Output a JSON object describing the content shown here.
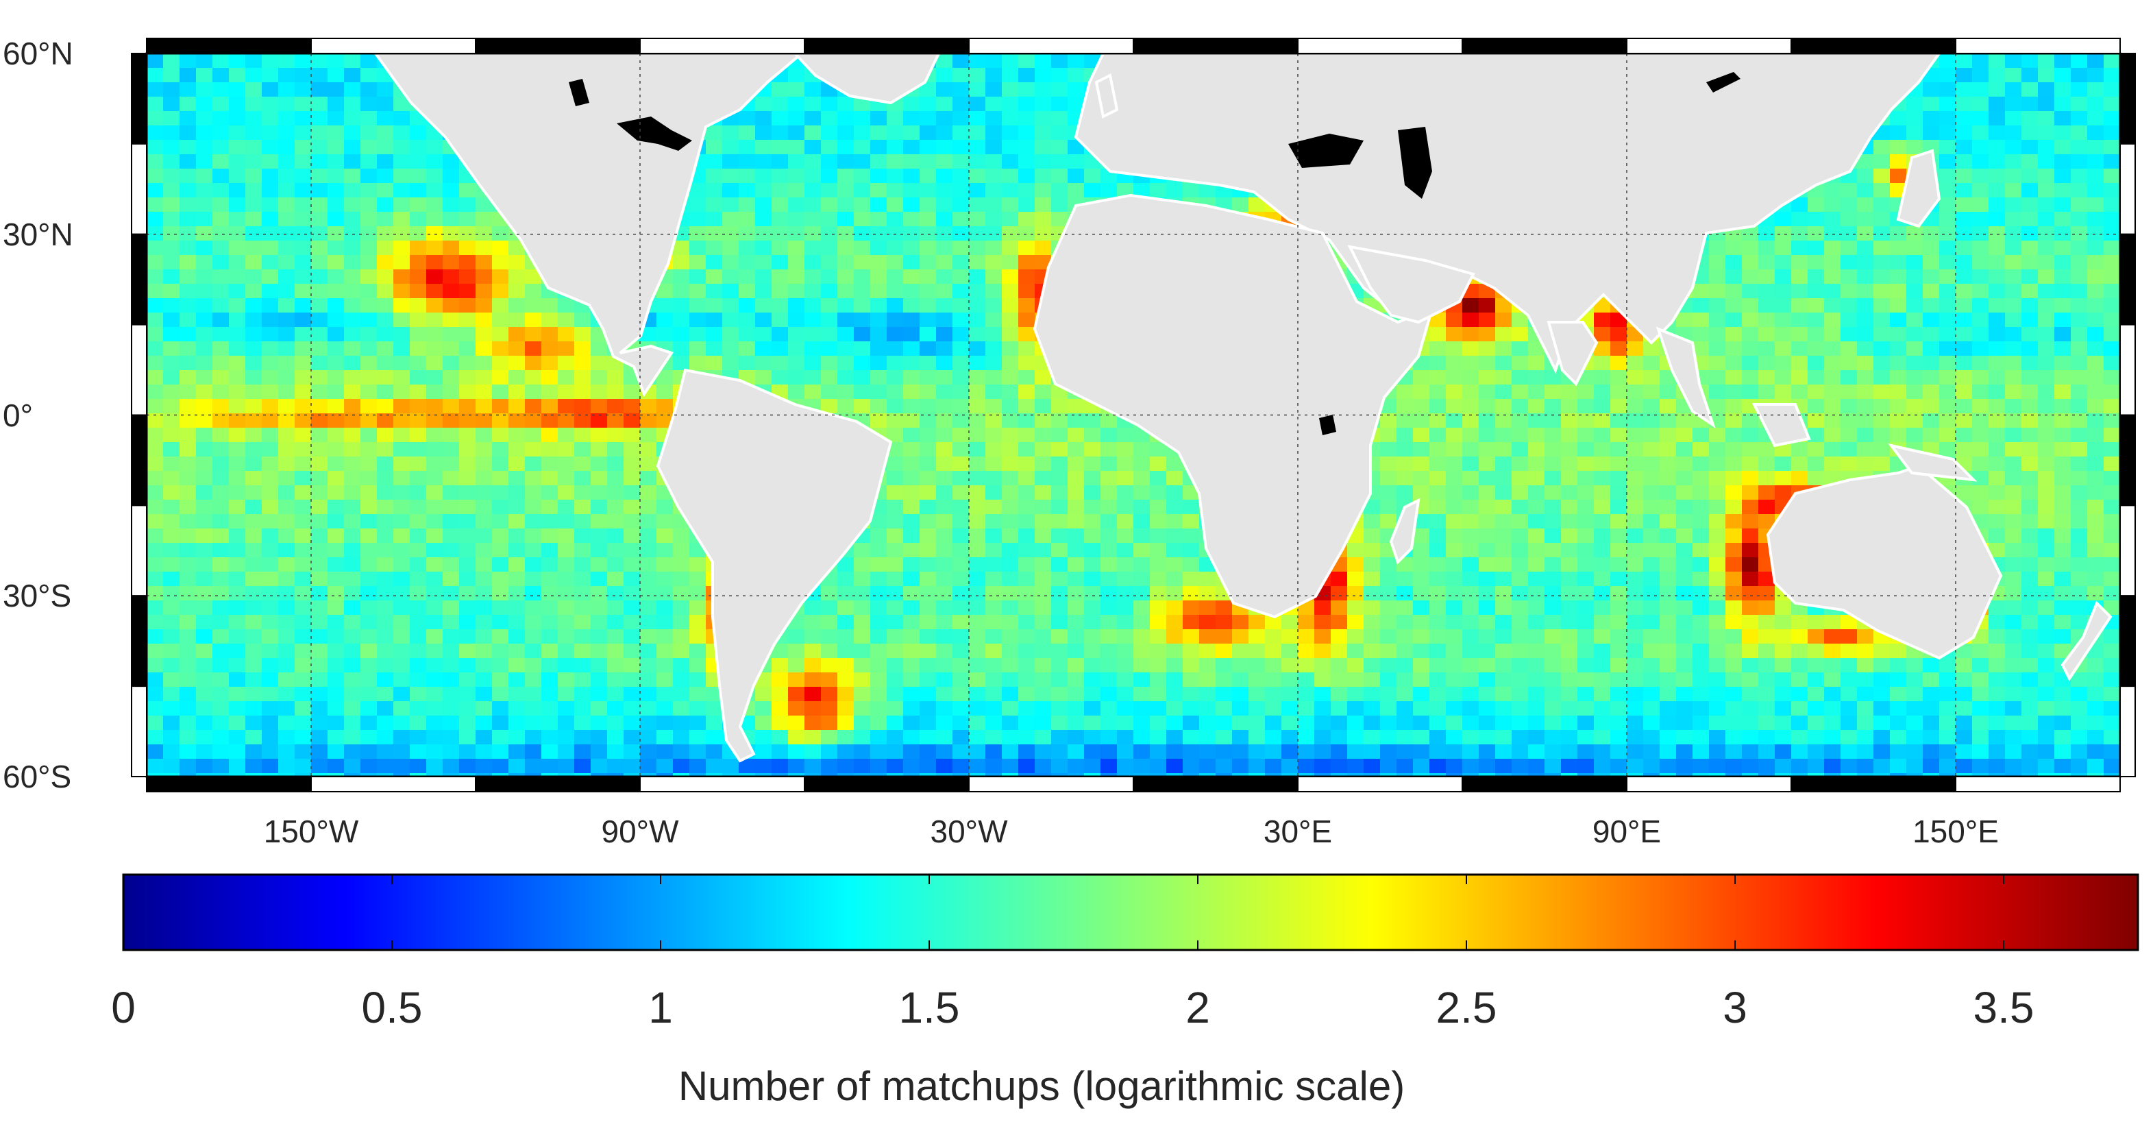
{
  "map": {
    "type": "heatmap",
    "projection": "equirectangular",
    "extent": {
      "lon": [
        -180,
        180
      ],
      "lat": [
        -60,
        60
      ]
    },
    "colormap": "jet",
    "land_color": "#e5e5e5",
    "inland_water_color": "#000000",
    "nodata_color": "#ffffff",
    "grid": "dotted at 60 degree longitude and 30 degree latitude intervals",
    "lat_ticks": [
      {
        "value": 60,
        "label": "60°N"
      },
      {
        "value": 30,
        "label": "30°N"
      },
      {
        "value": 0,
        "label": "0°"
      },
      {
        "value": -30,
        "label": "30°S"
      },
      {
        "value": -60,
        "label": "60°S"
      }
    ],
    "lon_ticks": [
      {
        "value": -150,
        "label": "150°W"
      },
      {
        "value": -90,
        "label": "90°W"
      },
      {
        "value": -30,
        "label": "30°W"
      },
      {
        "value": 30,
        "label": "30°E"
      },
      {
        "value": 90,
        "label": "90°E"
      },
      {
        "value": 150,
        "label": "150°E"
      }
    ]
  },
  "colorbar": {
    "range": [
      0,
      3.75
    ],
    "ticks": [
      0,
      0.5,
      1,
      1.5,
      2,
      2.5,
      3,
      3.5
    ],
    "tick_labels": [
      "0",
      "0.5",
      "1",
      "1.5",
      "2",
      "2.5",
      "3",
      "3.5"
    ],
    "label": "Number of matchups (logarithmic scale)"
  }
}
